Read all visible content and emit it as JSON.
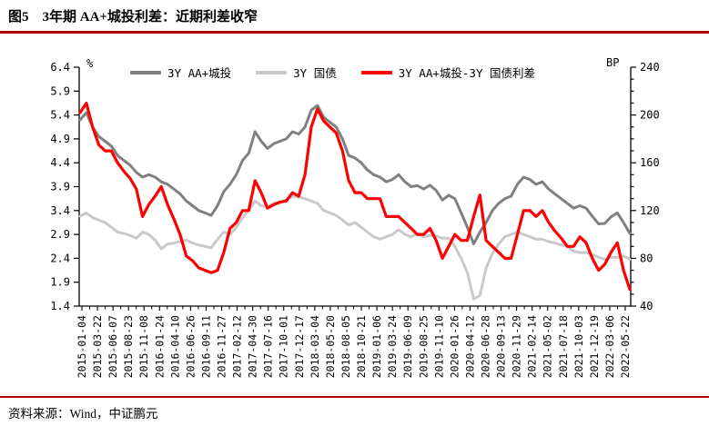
{
  "figure": {
    "number": "图5",
    "title": "3年期 AA+城投利差：近期利差收窄",
    "source": "资料来源：Wind，中证鹏元"
  },
  "colors": {
    "accent_rule": "#B00000",
    "series_gray": "#808080",
    "series_light_gray": "#C9C9C9",
    "series_red": "#FF0000",
    "axis": "#000000"
  },
  "chart_data": {
    "type": "line",
    "left_axis": {
      "label": "%",
      "min": 1.4,
      "max": 6.4,
      "ticks": [
        6.4,
        5.9,
        5.4,
        4.9,
        4.4,
        3.9,
        3.4,
        2.9,
        2.4,
        1.9,
        1.4
      ]
    },
    "right_axis": {
      "label": "BP",
      "min": 40,
      "max": 240,
      "ticks": [
        240,
        200,
        160,
        120,
        80,
        40
      ],
      "minor_step": 10,
      "major_step": 40
    },
    "x_labels": [
      "2015-01-04",
      "2015-03-22",
      "2015-06-07",
      "2015-08-23",
      "2015-11-08",
      "2016-01-24",
      "2016-04-10",
      "2016-06-26",
      "2016-09-11",
      "2016-11-27",
      "2017-02-12",
      "2017-04-30",
      "2017-07-16",
      "2017-10-01",
      "2017-12-17",
      "2018-03-04",
      "2018-05-20",
      "2018-08-05",
      "2018-10-21",
      "2019-01-06",
      "2019-03-24",
      "2019-06-09",
      "2019-08-25",
      "2019-11-10",
      "2020-01-26",
      "2020-04-12",
      "2020-06-28",
      "2020-09-13",
      "2020-11-29",
      "2021-02-14",
      "2021-05-02",
      "2021-07-18",
      "2021-10-03",
      "2021-12-19",
      "2022-03-06",
      "2022-05-22"
    ],
    "sampling": {
      "start": "2015-01",
      "end": "2022-05",
      "interval": "monthly"
    },
    "grid": false,
    "legend_position": "top",
    "series": [
      {
        "name": "3Y AA+城投",
        "axis": "left",
        "unit": "%",
        "color": "#808080",
        "width": 3,
        "values": [
          5.3,
          5.45,
          5.15,
          4.95,
          4.85,
          4.75,
          4.55,
          4.45,
          4.35,
          4.2,
          4.1,
          4.15,
          4.1,
          4.0,
          3.95,
          3.85,
          3.75,
          3.6,
          3.5,
          3.4,
          3.35,
          3.3,
          3.5,
          3.8,
          3.95,
          4.15,
          4.45,
          4.6,
          5.05,
          4.85,
          4.7,
          4.8,
          4.85,
          4.9,
          5.05,
          5.0,
          5.15,
          5.5,
          5.6,
          5.35,
          5.25,
          5.15,
          4.9,
          4.55,
          4.5,
          4.4,
          4.25,
          4.15,
          4.1,
          4.0,
          4.05,
          4.15,
          4.0,
          3.9,
          3.92,
          3.85,
          3.93,
          3.82,
          3.62,
          3.72,
          3.65,
          3.35,
          3.05,
          2.7,
          2.95,
          3.15,
          3.4,
          3.55,
          3.65,
          3.7,
          3.95,
          4.1,
          4.05,
          3.95,
          4.0,
          3.85,
          3.75,
          3.65,
          3.55,
          3.45,
          3.5,
          3.45,
          3.28,
          3.12,
          3.13,
          3.27,
          3.35,
          3.15,
          2.92
        ]
      },
      {
        "name": "3Y 国债",
        "axis": "left",
        "unit": "%",
        "color": "#C9C9C9",
        "width": 3,
        "values": [
          3.28,
          3.35,
          3.25,
          3.2,
          3.15,
          3.05,
          2.95,
          2.92,
          2.88,
          2.82,
          2.95,
          2.9,
          2.78,
          2.6,
          2.7,
          2.72,
          2.75,
          2.78,
          2.72,
          2.68,
          2.65,
          2.62,
          2.8,
          2.95,
          2.9,
          3.05,
          3.25,
          3.4,
          3.6,
          3.5,
          3.48,
          3.55,
          3.58,
          3.62,
          3.7,
          3.68,
          3.65,
          3.6,
          3.55,
          3.4,
          3.35,
          3.3,
          3.2,
          3.1,
          3.15,
          3.05,
          2.95,
          2.85,
          2.8,
          2.85,
          2.9,
          3.0,
          2.9,
          2.85,
          2.92,
          2.85,
          2.88,
          2.87,
          2.82,
          2.82,
          2.65,
          2.4,
          2.1,
          1.55,
          1.62,
          2.2,
          2.5,
          2.7,
          2.85,
          2.9,
          2.95,
          2.9,
          2.85,
          2.8,
          2.8,
          2.75,
          2.72,
          2.68,
          2.65,
          2.55,
          2.52,
          2.52,
          2.48,
          2.42,
          2.38,
          2.42,
          2.42,
          2.45,
          2.38
        ]
      },
      {
        "name": "3Y AA+城投-3Y 国债利差",
        "axis": "right",
        "unit": "BP",
        "color": "#FF0000",
        "width": 3.2,
        "values": [
          202,
          210,
          190,
          175,
          170,
          170,
          160,
          153,
          147,
          138,
          115,
          125,
          132,
          140,
          125,
          113,
          100,
          82,
          78,
          72,
          70,
          68,
          70,
          85,
          105,
          110,
          120,
          120,
          145,
          135,
          122,
          125,
          127,
          128,
          135,
          132,
          150,
          190,
          205,
          195,
          190,
          185,
          170,
          145,
          135,
          135,
          130,
          130,
          130,
          115,
          115,
          115,
          110,
          105,
          100,
          100,
          105,
          95,
          80,
          90,
          100,
          95,
          95,
          115,
          133,
          95,
          90,
          85,
          80,
          80,
          100,
          120,
          120,
          115,
          120,
          110,
          103,
          97,
          90,
          90,
          98,
          93,
          80,
          70,
          75,
          85,
          93,
          70,
          54
        ]
      }
    ]
  }
}
